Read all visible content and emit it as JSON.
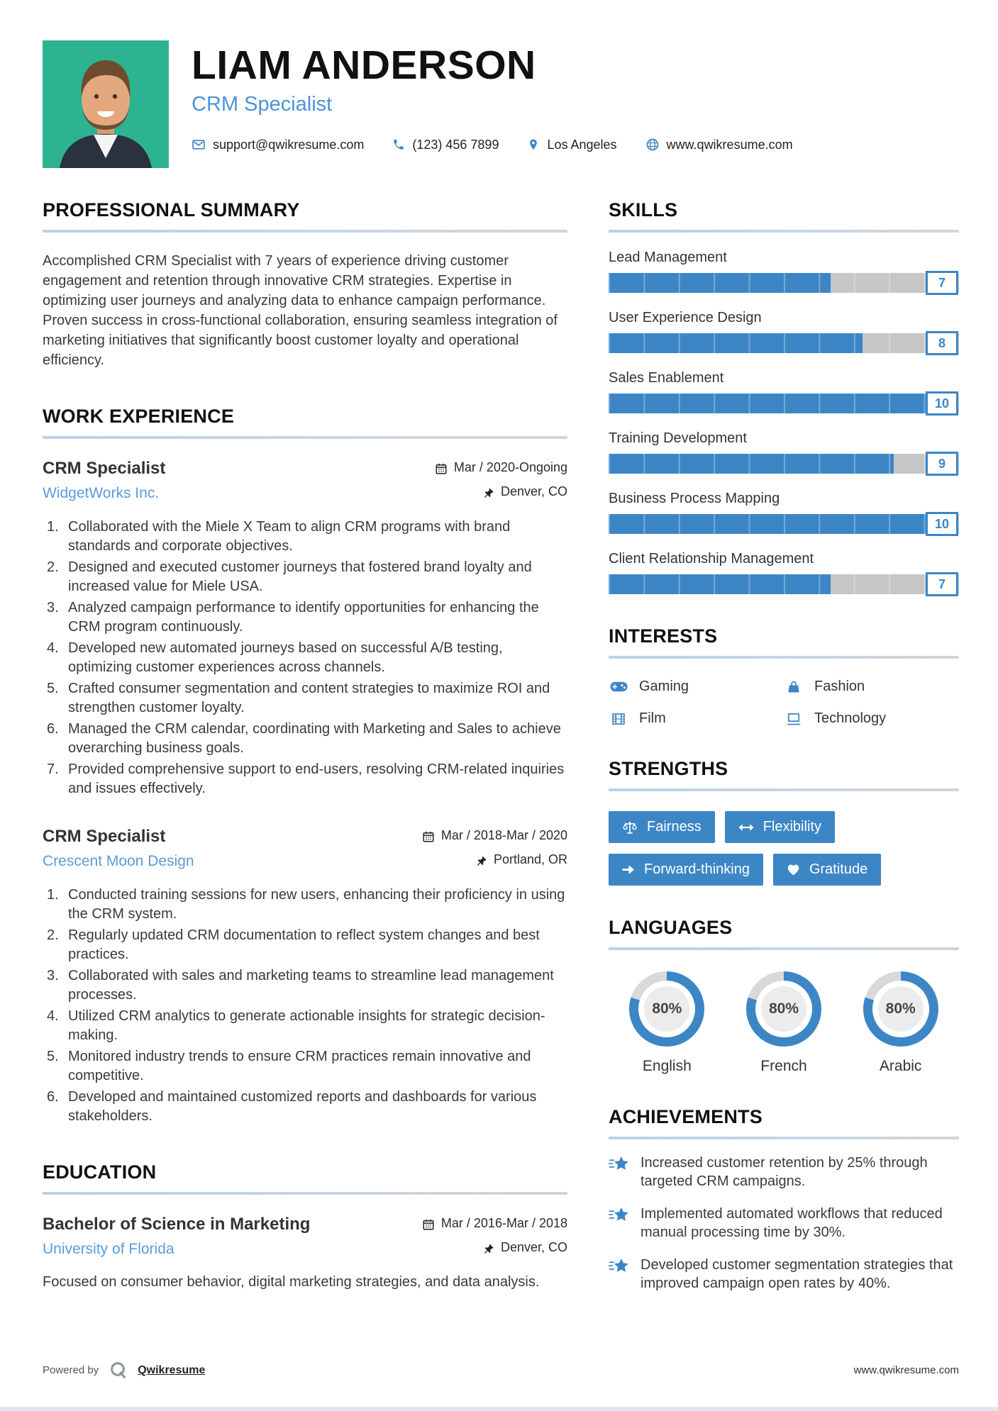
{
  "colors": {
    "accent": "#3c86c6",
    "link": "#5b9bd8",
    "bar_track": "#c6c6c6",
    "photo_background": "#2db391"
  },
  "header": {
    "name": "LIAM ANDERSON",
    "title": "CRM Specialist",
    "contacts": [
      {
        "icon": "email-icon",
        "text": "support@qwikresume.com",
        "link": true
      },
      {
        "icon": "phone-icon",
        "text": "(123) 456 7899",
        "link": false
      },
      {
        "icon": "location-icon",
        "text": "Los Angeles",
        "link": false
      },
      {
        "icon": "globe-icon",
        "text": "www.qwikresume.com",
        "link": true
      }
    ]
  },
  "summary": {
    "heading": "PROFESSIONAL SUMMARY",
    "text": "Accomplished CRM Specialist with 7 years of experience driving customer engagement and retention through innovative CRM strategies. Expertise in optimizing user journeys and analyzing data to enhance campaign performance. Proven success in cross-functional collaboration, ensuring seamless integration of marketing initiatives that significantly boost customer loyalty and operational efficiency."
  },
  "experience": {
    "heading": "WORK EXPERIENCE",
    "jobs": [
      {
        "title": "CRM Specialist",
        "company": "WidgetWorks Inc.",
        "dates": "Mar / 2020-Ongoing",
        "location": "Denver, CO",
        "bullets": [
          "Collaborated with the Miele X Team to align CRM programs with brand standards and corporate objectives.",
          "Designed and executed customer journeys that fostered brand loyalty and increased value for Miele USA.",
          "Analyzed campaign performance to identify opportunities for enhancing the CRM program continuously.",
          "Developed new automated journeys based on successful A/B testing, optimizing customer experiences across channels.",
          "Crafted consumer segmentation and content strategies to maximize ROI and strengthen customer loyalty.",
          "Managed the CRM calendar, coordinating with Marketing and Sales to achieve overarching business goals.",
          "Provided comprehensive support to end-users, resolving CRM-related inquiries and issues effectively."
        ]
      },
      {
        "title": "CRM Specialist",
        "company": "Crescent Moon Design",
        "dates": "Mar / 2018-Mar / 2020",
        "location": "Portland, OR",
        "bullets": [
          "Conducted training sessions for new users, enhancing their proficiency in using the CRM system.",
          "Regularly updated CRM documentation to reflect system changes and best practices.",
          "Collaborated with sales and marketing teams to streamline lead management processes.",
          "Utilized CRM analytics to generate actionable insights for strategic decision-making.",
          "Monitored industry trends to ensure CRM practices remain innovative and competitive.",
          "Developed and maintained customized reports and dashboards for various stakeholders."
        ]
      }
    ]
  },
  "education": {
    "heading": "EDUCATION",
    "degree": "Bachelor of Science in Marketing",
    "school": "University of Florida",
    "dates": "Mar / 2016-Mar / 2018",
    "location": "Denver, CO",
    "description": "Focused on consumer behavior, digital marketing strategies, and data analysis."
  },
  "skills": {
    "heading": "SKILLS",
    "max": 10,
    "items": [
      {
        "label": "Lead Management",
        "value": 7
      },
      {
        "label": "User Experience Design",
        "value": 8
      },
      {
        "label": "Sales Enablement",
        "value": 10
      },
      {
        "label": "Training Development",
        "value": 9
      },
      {
        "label": "Business Process Mapping",
        "value": 10
      },
      {
        "label": "Client Relationship Management",
        "value": 7
      }
    ]
  },
  "interests": {
    "heading": "INTERESTS",
    "items": [
      {
        "icon": "gamepad-icon",
        "label": "Gaming"
      },
      {
        "icon": "fashion-bag-icon",
        "label": "Fashion"
      },
      {
        "icon": "film-icon",
        "label": "Film"
      },
      {
        "icon": "laptop-icon",
        "label": "Technology"
      }
    ]
  },
  "strengths": {
    "heading": "STRENGTHS",
    "items": [
      {
        "icon": "scales-icon",
        "label": "Fairness"
      },
      {
        "icon": "left-right-arrow-icon",
        "label": "Flexibility"
      },
      {
        "icon": "right-arrow-icon",
        "label": "Forward-thinking"
      },
      {
        "icon": "heart-icon",
        "label": "Gratitude"
      }
    ]
  },
  "languages": {
    "heading": "LANGUAGES",
    "items": [
      {
        "label": "English",
        "percent": 80,
        "percent_label": "80%"
      },
      {
        "label": "French",
        "percent": 80,
        "percent_label": "80%"
      },
      {
        "label": "Arabic",
        "percent": 80,
        "percent_label": "80%"
      }
    ]
  },
  "achievements": {
    "heading": "ACHIEVEMENTS",
    "items": [
      "Increased customer retention by 25% through targeted CRM campaigns.",
      "Implemented automated workflows that reduced manual processing time by 30%.",
      "Developed customer segmentation strategies that improved campaign open rates by 40%."
    ]
  },
  "footer": {
    "powered_by": "Powered by",
    "brand": "Qwikresume",
    "website": "www.qwikresume.com"
  }
}
